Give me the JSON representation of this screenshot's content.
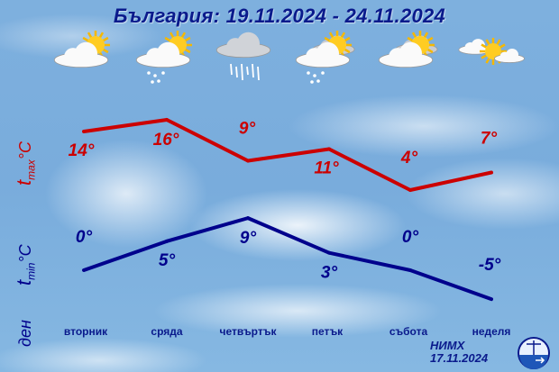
{
  "title": "България: 19.11.2024 - 24.11.2024",
  "axis_labels": {
    "tmax_t": "t",
    "tmax_sub": "max",
    "tmax_unit": "°C",
    "tmin_t": "t",
    "tmin_sub": "min",
    "tmin_unit": "°C",
    "day": "ден"
  },
  "icons": [
    "partly-cloudy-icon",
    "partly-cloudy-showers-icon",
    "cloudy-rain-icon",
    "mostly-cloudy-showers-icon",
    "mostly-cloudy-icon",
    "sunny-intervals-icon"
  ],
  "footer": {
    "org": "НИМХ",
    "date": "17.11.2024"
  },
  "chart_data": {
    "type": "line",
    "categories": [
      "вторник",
      "сряда",
      "четвъртък",
      "петък",
      "събота",
      "неделя"
    ],
    "series": [
      {
        "name": "tmax °C",
        "color": "#cc0000",
        "values": [
          14,
          16,
          9,
          11,
          4,
          7
        ],
        "labels": [
          "14°",
          "16°",
          "9°",
          "11°",
          "4°",
          "7°"
        ]
      },
      {
        "name": "tmin °C",
        "color": "#00008c",
        "values": [
          0,
          5,
          9,
          3,
          0,
          -5
        ],
        "labels": [
          "0°",
          "5°",
          "9°",
          "3°",
          "0°",
          "-5°"
        ]
      }
    ],
    "grid": false
  }
}
